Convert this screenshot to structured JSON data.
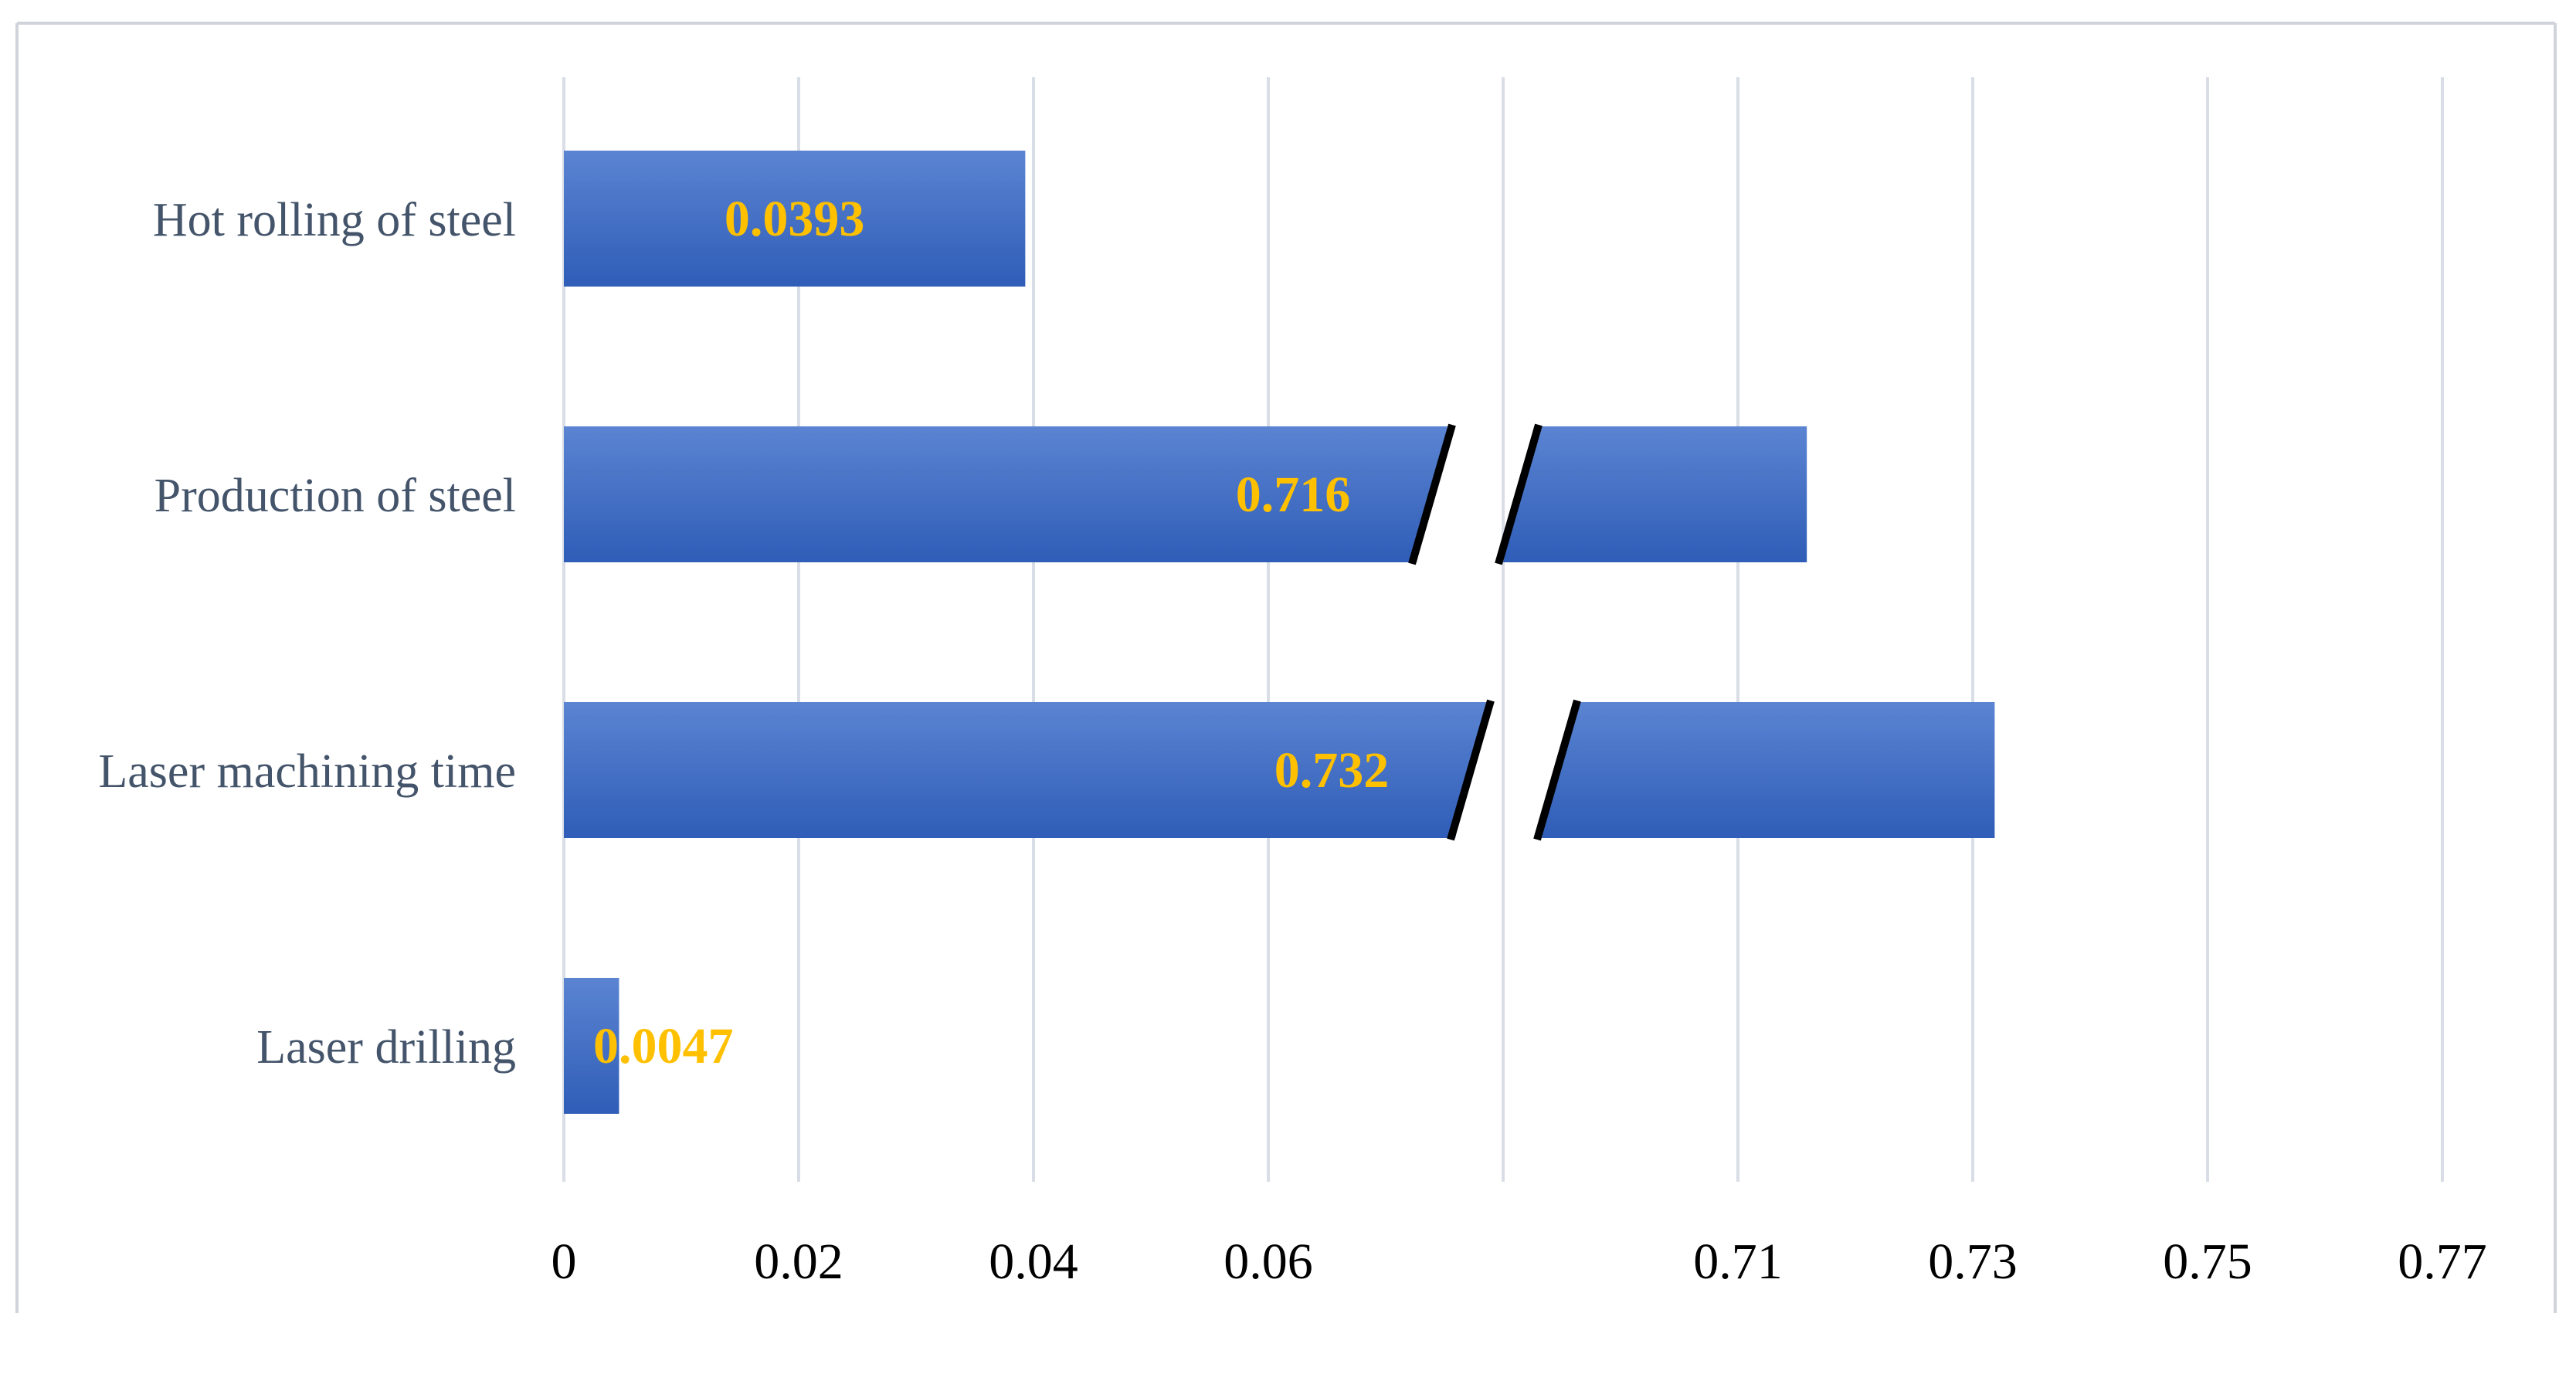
{
  "chart_data": {
    "type": "bar",
    "orientation": "horizontal",
    "axis_break": true,
    "categories": [
      "Hot rolling of steel",
      "Production of steel",
      "Laser machining time",
      "Laser drilling"
    ],
    "values": [
      0.0393,
      0.716,
      0.732,
      0.0047
    ],
    "data_labels": [
      "0.0393",
      "0.716",
      "0.732",
      "0.0047"
    ],
    "x_tick_labels": [
      "0",
      "0.02",
      "0.04",
      "0.06",
      "0.71",
      "0.73",
      "0.75",
      "0.77"
    ],
    "xlim_lower_segment": [
      0,
      0.08
    ],
    "xlim_upper_segment": [
      0.69,
      0.77
    ],
    "grid": true,
    "title": "",
    "xlabel": "",
    "ylabel": "",
    "colors": {
      "bar": "#4472c4",
      "bar_dark": "#2f5db7",
      "bar_light": "#5b84d2",
      "data_label": "#ffc000",
      "category_label": "#44546a",
      "tick_label": "#000000",
      "grid": "#d9dee6",
      "frame": "#d0d4da"
    }
  }
}
